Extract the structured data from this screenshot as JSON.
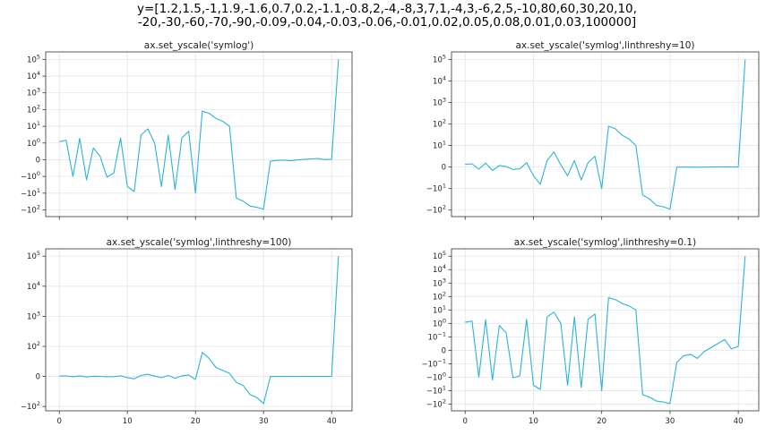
{
  "figure": {
    "title_line1": "y=[1.2,1.5,-1,1.9,-1.6,0.7,0.2,-1.1,-0.8,2,-4,-8,3,7,1,-4,3,-6,2,5,-10,80,60,30,20,10,",
    "title_line2": "-20,-30,-60,-70,-90,-0.09,-0.04,-0.03,-0.06,-0.01,0.02,0.05,0.08,0.01,0.03,100000]"
  },
  "chart_data": [
    {
      "type": "line",
      "title": "ax.set_yscale('symlog')",
      "scale": "symlog",
      "linthresh": 1,
      "xlim": [
        -2,
        43
      ],
      "x_ticks": [
        0,
        10,
        20,
        30,
        40
      ],
      "show_x_labels": false,
      "y_ticks": [
        {
          "v": -100,
          "base": "−10",
          "exp": "2"
        },
        {
          "v": -10,
          "base": "−10",
          "exp": "1"
        },
        {
          "v": -1,
          "base": "−10",
          "exp": "0"
        },
        {
          "v": 0,
          "base": "0",
          "exp": ""
        },
        {
          "v": 1,
          "base": "10",
          "exp": "0"
        },
        {
          "v": 10,
          "base": "10",
          "exp": "1"
        },
        {
          "v": 100,
          "base": "10",
          "exp": "2"
        },
        {
          "v": 1000,
          "base": "10",
          "exp": "3"
        },
        {
          "v": 10000,
          "base": "10",
          "exp": "4"
        },
        {
          "v": 100000,
          "base": "10",
          "exp": "5"
        }
      ],
      "color": "#2bb3d6",
      "grid": true,
      "y": [
        1.2,
        1.5,
        -1,
        1.9,
        -1.6,
        0.7,
        0.2,
        -1.1,
        -0.8,
        2,
        -4,
        -8,
        3,
        7,
        1,
        -4,
        3,
        -6,
        2,
        5,
        -10,
        80,
        60,
        30,
        20,
        10,
        -20,
        -30,
        -60,
        -70,
        -90,
        -0.09,
        -0.04,
        -0.03,
        -0.06,
        -0.01,
        0.02,
        0.05,
        0.08,
        0.01,
        0.03,
        100000
      ]
    },
    {
      "type": "line",
      "title": "ax.set_yscale('symlog',linthreshy=10)",
      "scale": "symlog",
      "linthresh": 10,
      "xlim": [
        -2,
        43
      ],
      "x_ticks": [
        0,
        10,
        20,
        30,
        40
      ],
      "show_x_labels": false,
      "y_ticks": [
        {
          "v": -100,
          "base": "−10",
          "exp": "2"
        },
        {
          "v": -10,
          "base": "−10",
          "exp": "1"
        },
        {
          "v": 0,
          "base": "0",
          "exp": ""
        },
        {
          "v": 10,
          "base": "10",
          "exp": "1"
        },
        {
          "v": 100,
          "base": "10",
          "exp": "2"
        },
        {
          "v": 1000,
          "base": "10",
          "exp": "3"
        },
        {
          "v": 10000,
          "base": "10",
          "exp": "4"
        },
        {
          "v": 100000,
          "base": "10",
          "exp": "5"
        }
      ],
      "color": "#2bb3d6",
      "grid": true,
      "y": [
        1.2,
        1.5,
        -1,
        1.9,
        -1.6,
        0.7,
        0.2,
        -1.1,
        -0.8,
        2,
        -4,
        -8,
        3,
        7,
        1,
        -4,
        3,
        -6,
        2,
        5,
        -10,
        80,
        60,
        30,
        20,
        10,
        -20,
        -30,
        -60,
        -70,
        -90,
        -0.09,
        -0.04,
        -0.03,
        -0.06,
        -0.01,
        0.02,
        0.05,
        0.08,
        0.01,
        0.03,
        100000
      ]
    },
    {
      "type": "line",
      "title": "ax.set_yscale('symlog',linthreshy=100)",
      "scale": "symlog",
      "linthresh": 100,
      "xlim": [
        -2,
        43
      ],
      "x_ticks": [
        0,
        10,
        20,
        30,
        40
      ],
      "show_x_labels": true,
      "y_ticks": [
        {
          "v": -100,
          "base": "−10",
          "exp": "2"
        },
        {
          "v": 0,
          "base": "0",
          "exp": ""
        },
        {
          "v": 100,
          "base": "10",
          "exp": "2"
        },
        {
          "v": 1000,
          "base": "10",
          "exp": "3"
        },
        {
          "v": 10000,
          "base": "10",
          "exp": "4"
        },
        {
          "v": 100000,
          "base": "10",
          "exp": "5"
        }
      ],
      "color": "#2bb3d6",
      "grid": true,
      "y": [
        1.2,
        1.5,
        -1,
        1.9,
        -1.6,
        0.7,
        0.2,
        -1.1,
        -0.8,
        2,
        -4,
        -8,
        3,
        7,
        1,
        -4,
        3,
        -6,
        2,
        5,
        -10,
        80,
        60,
        30,
        20,
        10,
        -20,
        -30,
        -60,
        -70,
        -90,
        -0.09,
        -0.04,
        -0.03,
        -0.06,
        -0.01,
        0.02,
        0.05,
        0.08,
        0.01,
        0.03,
        100000
      ]
    },
    {
      "type": "line",
      "title": "ax.set_yscale('symlog',linthreshy=0.1)",
      "scale": "symlog",
      "linthresh": 0.1,
      "xlim": [
        -2,
        43
      ],
      "x_ticks": [
        0,
        10,
        20,
        30,
        40
      ],
      "show_x_labels": true,
      "y_ticks": [
        {
          "v": -100,
          "base": "−10",
          "exp": "2"
        },
        {
          "v": -10,
          "base": "−10",
          "exp": "1"
        },
        {
          "v": -1,
          "base": "−10",
          "exp": "0"
        },
        {
          "v": -0.1,
          "base": "−10",
          "exp": "−1"
        },
        {
          "v": 0,
          "base": "0",
          "exp": ""
        },
        {
          "v": 0.1,
          "base": "10",
          "exp": "−1"
        },
        {
          "v": 1,
          "base": "10",
          "exp": "0"
        },
        {
          "v": 10,
          "base": "10",
          "exp": "1"
        },
        {
          "v": 100,
          "base": "10",
          "exp": "2"
        },
        {
          "v": 1000,
          "base": "10",
          "exp": "3"
        },
        {
          "v": 10000,
          "base": "10",
          "exp": "4"
        },
        {
          "v": 100000,
          "base": "10",
          "exp": "5"
        }
      ],
      "color": "#2bb3d6",
      "grid": true,
      "y": [
        1.2,
        1.5,
        -1,
        1.9,
        -1.6,
        0.7,
        0.2,
        -1.1,
        -0.8,
        2,
        -4,
        -8,
        3,
        7,
        1,
        -4,
        3,
        -6,
        2,
        5,
        -10,
        80,
        60,
        30,
        20,
        10,
        -20,
        -30,
        -60,
        -70,
        -90,
        -0.09,
        -0.04,
        -0.03,
        -0.06,
        -0.01,
        0.02,
        0.05,
        0.08,
        0.01,
        0.03,
        100000
      ]
    }
  ]
}
